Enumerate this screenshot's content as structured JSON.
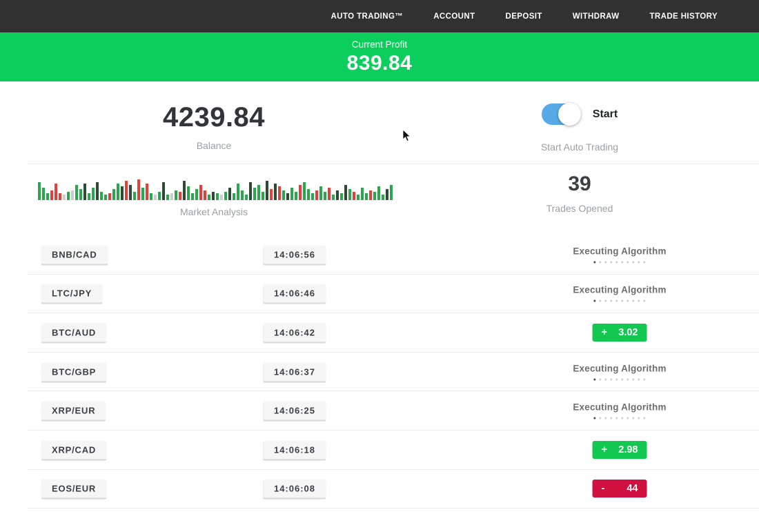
{
  "colors": {
    "navbar-bg": "#313131",
    "banner-green": "#0bce5c",
    "badge-green": "#12c850",
    "badge-red": "#d0113f",
    "toggle-blue": "#57aae6"
  },
  "navbar": {
    "items": [
      "AUTO TRADING™",
      "ACCOUNT",
      "DEPOSIT",
      "WITHDRAW",
      "TRADE HISTORY"
    ]
  },
  "profit_banner": {
    "label": "Current Profit",
    "value": "839.84"
  },
  "summary": {
    "balance_value": "4239.84",
    "balance_label": "Balance",
    "toggle_state": "on",
    "toggle_label": "Start",
    "toggle_caption": "Start Auto Trading",
    "trades_value": "39",
    "trades_label": "Trades Opened",
    "market_label": "Market Analysis"
  },
  "market_analysis": {
    "bar_colors": {
      "g": "#2da44e",
      "d": "#2f4a33",
      "r": "#e0423b",
      "l": "#c9cdd1"
    },
    "bars": [
      "g26",
      "g18",
      "g10",
      "r14",
      "r24",
      "r10",
      "l8",
      "g12",
      "l14",
      "g22",
      "g16",
      "d24",
      "g10",
      "g18",
      "d26",
      "g12",
      "g8",
      "r10",
      "g16",
      "g24",
      "d20",
      "r28",
      "d22",
      "g12",
      "r30",
      "g18",
      "r24",
      "g10",
      "l8",
      "g12",
      "d26",
      "g8",
      "l10",
      "g14",
      "r12",
      "d28",
      "g20",
      "g10",
      "g16",
      "r22",
      "r14",
      "g8",
      "d12",
      "g10",
      "l8",
      "g12",
      "d18",
      "g10",
      "g24",
      "g14",
      "g8",
      "d26",
      "g18",
      "g22",
      "g12",
      "d28",
      "r16",
      "d24",
      "r20",
      "g14",
      "d10",
      "g18",
      "g12",
      "r22",
      "g26",
      "g16",
      "g10",
      "r14",
      "g20",
      "g12",
      "r18",
      "g8",
      "d14",
      "g10",
      "d22",
      "g16",
      "r12",
      "g8",
      "g18",
      "g10",
      "r14",
      "g12",
      "g20",
      "g8",
      "d16",
      "g22"
    ]
  },
  "loader_dots": 10,
  "trades": [
    {
      "pair": "BNB/CAD",
      "time": "14:06:56",
      "status": "executing",
      "status_label": "Executing Algorithm"
    },
    {
      "pair": "LTC/JPY",
      "time": "14:06:46",
      "status": "executing",
      "status_label": "Executing Algorithm"
    },
    {
      "pair": "BTC/AUD",
      "time": "14:06:42",
      "status": "profit",
      "sign": "+",
      "result": "3.02"
    },
    {
      "pair": "BTC/GBP",
      "time": "14:06:37",
      "status": "executing",
      "status_label": "Executing Algorithm"
    },
    {
      "pair": "XRP/EUR",
      "time": "14:06:25",
      "status": "executing",
      "status_label": "Executing Algorithm"
    },
    {
      "pair": "XRP/CAD",
      "time": "14:06:18",
      "status": "profit",
      "sign": "+",
      "result": "2.98"
    },
    {
      "pair": "EOS/EUR",
      "time": "14:06:08",
      "status": "loss",
      "sign": "-",
      "result": "44"
    }
  ]
}
